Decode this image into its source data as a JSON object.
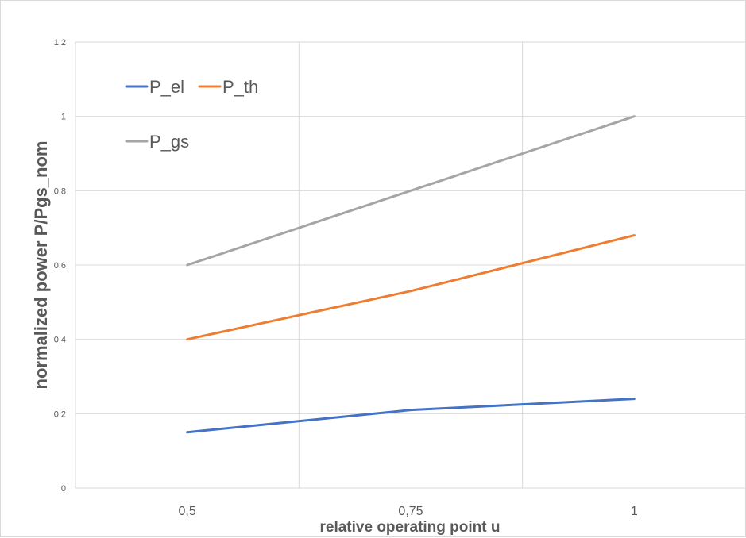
{
  "chart_data": {
    "type": "line",
    "xlabel": "relative operating point u",
    "ylabel": "normalized power P/Pgs_nom",
    "categories": [
      "0,5",
      "0,75",
      "1"
    ],
    "x": [
      0.5,
      0.75,
      1.0
    ],
    "xlim": [
      0.375,
      1.125
    ],
    "ylim": [
      0,
      1.2
    ],
    "yticks": [
      0,
      0.2,
      0.4,
      0.6,
      0.8,
      1.0,
      1.2
    ],
    "ytick_labels": [
      "0",
      "0,2",
      "0,4",
      "0,6",
      "0,8",
      "1",
      "1,2"
    ],
    "grid": true,
    "legend_position": "top-left",
    "series": [
      {
        "name": "P_el",
        "values": [
          0.15,
          0.21,
          0.24
        ],
        "color": "#4472C4"
      },
      {
        "name": "P_th",
        "values": [
          0.4,
          0.53,
          0.68
        ],
        "color": "#ED7D31"
      },
      {
        "name": "P_gs",
        "values": [
          0.6,
          0.8,
          1.0
        ],
        "color": "#A5A5A5"
      }
    ]
  }
}
